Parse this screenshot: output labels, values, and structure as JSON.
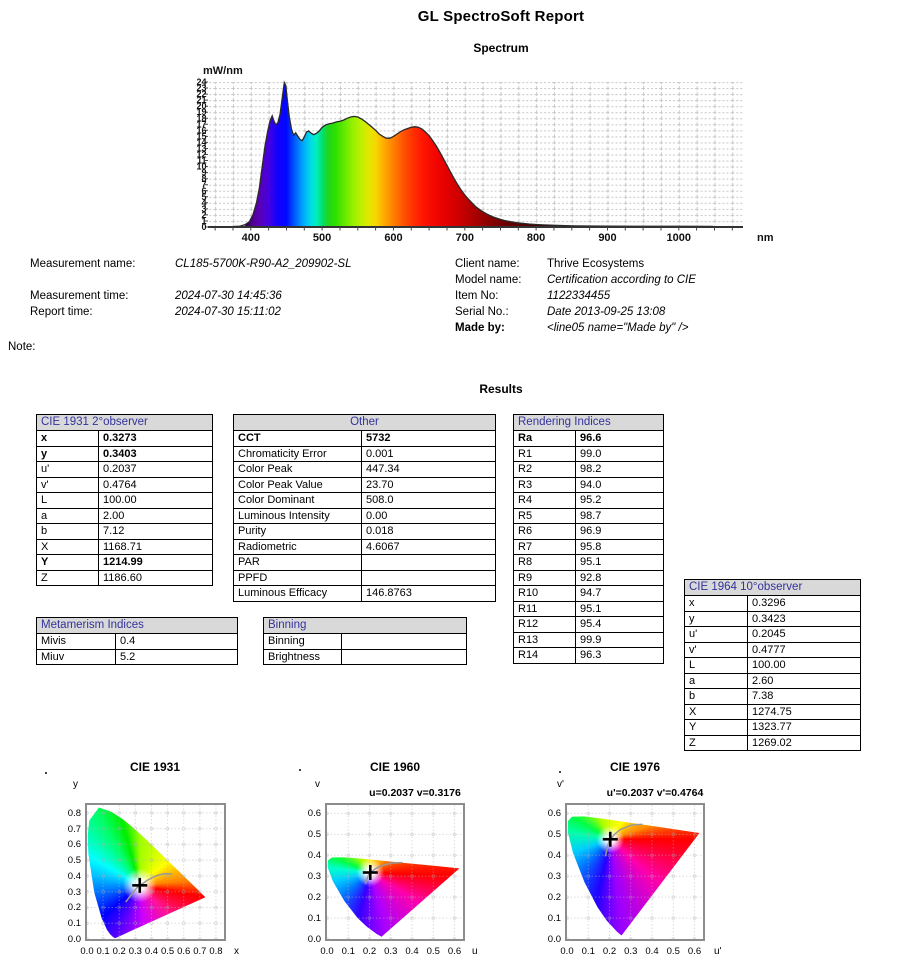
{
  "page": {
    "title": "GL SpectroSoft Report",
    "spectrum_heading": "Spectrum",
    "results_heading": "Results",
    "note_label": "Note:"
  },
  "colors": {
    "table_header_text": "#33339C",
    "table_header_bg": "#D9D9D9",
    "grid_line": "#C9C9C9",
    "curve_stroke": "#2A2A2A",
    "frame_border": "#8C8C8C"
  },
  "metadata": {
    "rows": [
      {
        "left_label": "Measurement name:",
        "left_value": "CL185-5700K-R90-A2_209902-SL",
        "right_label": "Client name:",
        "right_value": "Thrive Ecosystems"
      },
      {
        "left_label": "",
        "left_value": "",
        "right_label": "Model name:",
        "right_value": "Certification according to CIE"
      },
      {
        "left_label": "Measurement time:",
        "left_value": "2024-07-30 14:45:36",
        "right_label": "Item No:",
        "right_value": "1122334455"
      },
      {
        "left_label": "Report time:",
        "left_value": "2024-07-30 15:11:02",
        "right_label": "Serial No.:",
        "right_value": "Date 2013-09-25 13:08"
      },
      {
        "left_label": "",
        "left_value": "",
        "right_label": "Made by:",
        "right_value": "<line05 name=\"Made by\" />"
      }
    ]
  },
  "tables": {
    "cie1931": {
      "title": "CIE 1931 2°observer",
      "center": false,
      "rows": [
        [
          "x",
          "0.3273",
          1
        ],
        [
          "y",
          "0.3403",
          1
        ],
        [
          "u'",
          "0.2037",
          0
        ],
        [
          "v'",
          "0.4764",
          0
        ],
        [
          "L",
          "100.00",
          0
        ],
        [
          "a",
          "2.00",
          0
        ],
        [
          "b",
          "7.12",
          0
        ],
        [
          "X",
          "1168.71",
          0
        ],
        [
          "Y",
          "1214.99",
          1
        ],
        [
          "Z",
          "1186.60",
          0
        ]
      ]
    },
    "other": {
      "title": "Other",
      "center": true,
      "rows": [
        [
          "CCT",
          "5732",
          1
        ],
        [
          "Chromaticity Error",
          "0.001",
          0
        ],
        [
          "Color Peak",
          "447.34",
          0
        ],
        [
          "Color Peak Value",
          "23.70",
          0
        ],
        [
          "Color Dominant",
          "508.0",
          0
        ],
        [
          "Luminous Intensity",
          "0.00",
          0
        ],
        [
          "Purity",
          "0.018",
          0
        ],
        [
          "Radiometric",
          "4.6067",
          0
        ],
        [
          "PAR",
          "",
          0
        ],
        [
          "PPFD",
          "",
          0
        ],
        [
          "Luminous Efficacy",
          "146.8763",
          0
        ]
      ]
    },
    "rendering": {
      "title": "Rendering Indices",
      "center": false,
      "rows": [
        [
          "Ra",
          "96.6",
          1
        ],
        [
          "R1",
          "99.0",
          0
        ],
        [
          "R2",
          "98.2",
          0
        ],
        [
          "R3",
          "94.0",
          0
        ],
        [
          "R4",
          "95.2",
          0
        ],
        [
          "R5",
          "98.7",
          0
        ],
        [
          "R6",
          "96.9",
          0
        ],
        [
          "R7",
          "95.8",
          0
        ],
        [
          "R8",
          "95.1",
          0
        ],
        [
          "R9",
          "92.8",
          0
        ],
        [
          "R10",
          "94.7",
          0
        ],
        [
          "R11",
          "95.1",
          0
        ],
        [
          "R12",
          "95.4",
          0
        ],
        [
          "R13",
          "99.9",
          0
        ],
        [
          "R14",
          "96.3",
          0
        ]
      ]
    },
    "cie1964": {
      "title": "CIE 1964 10°observer",
      "center": false,
      "rows": [
        [
          "x",
          "0.3296",
          0
        ],
        [
          "y",
          "0.3423",
          0
        ],
        [
          "u'",
          "0.2045",
          0
        ],
        [
          "v'",
          "0.4777",
          0
        ],
        [
          "L",
          "100.00",
          0
        ],
        [
          "a",
          "2.60",
          0
        ],
        [
          "b",
          "7.38",
          0
        ],
        [
          "X",
          "1274.75",
          0
        ],
        [
          "Y",
          "1323.77",
          0
        ],
        [
          "Z",
          "1269.02",
          0
        ]
      ]
    },
    "metamerism": {
      "title": "Metamerism Indices",
      "center": false,
      "rows": [
        [
          "Mivis",
          "0.4",
          0
        ],
        [
          "Miuv",
          "5.2",
          0
        ]
      ]
    },
    "binning": {
      "title": "Binning",
      "center": false,
      "rows": [
        [
          "Binning",
          "",
          0
        ],
        [
          "Brightness",
          "",
          0
        ]
      ]
    }
  },
  "chart_data": [
    {
      "type": "area",
      "title": "Spectrum",
      "xlabel": "nm",
      "ylabel": "mW/nm",
      "xlim": [
        340,
        1090
      ],
      "ylim": [
        0,
        24
      ],
      "ytick_step": 1,
      "xticks": [
        400,
        500,
        600,
        700,
        800,
        900,
        1000
      ],
      "grid": true,
      "fill_range": [
        390,
        845
      ],
      "points": [
        [
          350,
          0
        ],
        [
          360,
          0.05
        ],
        [
          375,
          0.08
        ],
        [
          385,
          0.15
        ],
        [
          392,
          0.4
        ],
        [
          398,
          0.9
        ],
        [
          403,
          2
        ],
        [
          408,
          4
        ],
        [
          412,
          6.5
        ],
        [
          416,
          10
        ],
        [
          420,
          13.5
        ],
        [
          424,
          16
        ],
        [
          427,
          17.6
        ],
        [
          430,
          18.4
        ],
        [
          432,
          17.7
        ],
        [
          435,
          16.9
        ],
        [
          438,
          17.3
        ],
        [
          441,
          18.6
        ],
        [
          444,
          21.3
        ],
        [
          447,
          23.9
        ],
        [
          449,
          23.4
        ],
        [
          451,
          21.2
        ],
        [
          454,
          18.2
        ],
        [
          457,
          16.2
        ],
        [
          460,
          15.2
        ],
        [
          463,
          15.6
        ],
        [
          466,
          15.0
        ],
        [
          469,
          14.5
        ],
        [
          472,
          14.3
        ],
        [
          475,
          14.9
        ],
        [
          478,
          15.7
        ],
        [
          481,
          15.9
        ],
        [
          484,
          15.6
        ],
        [
          488,
          15.3
        ],
        [
          492,
          15.5
        ],
        [
          496,
          15.9
        ],
        [
          500,
          16.5
        ],
        [
          505,
          16.9
        ],
        [
          510,
          17.1
        ],
        [
          515,
          17.2
        ],
        [
          520,
          17.4
        ],
        [
          525,
          17.5
        ],
        [
          530,
          17.7
        ],
        [
          535,
          18.0
        ],
        [
          540,
          18.2
        ],
        [
          545,
          18.3
        ],
        [
          550,
          18.2
        ],
        [
          555,
          17.9
        ],
        [
          560,
          17.5
        ],
        [
          565,
          17.0
        ],
        [
          570,
          16.5
        ],
        [
          575,
          16.0
        ],
        [
          580,
          15.4
        ],
        [
          585,
          15.0
        ],
        [
          590,
          14.7
        ],
        [
          595,
          14.7
        ],
        [
          600,
          15.0
        ],
        [
          605,
          15.4
        ],
        [
          610,
          15.8
        ],
        [
          615,
          16.1
        ],
        [
          620,
          16.3
        ],
        [
          625,
          16.5
        ],
        [
          630,
          16.6
        ],
        [
          635,
          16.5
        ],
        [
          640,
          16.2
        ],
        [
          645,
          15.7
        ],
        [
          650,
          15.1
        ],
        [
          655,
          14.3
        ],
        [
          660,
          13.4
        ],
        [
          665,
          12.4
        ],
        [
          670,
          11.3
        ],
        [
          675,
          10.2
        ],
        [
          680,
          9.1
        ],
        [
          685,
          8.0
        ],
        [
          690,
          7.0
        ],
        [
          695,
          6.1
        ],
        [
          700,
          5.3
        ],
        [
          705,
          4.6
        ],
        [
          710,
          4.0
        ],
        [
          715,
          3.4
        ],
        [
          720,
          2.95
        ],
        [
          725,
          2.55
        ],
        [
          730,
          2.2
        ],
        [
          735,
          1.9
        ],
        [
          740,
          1.65
        ],
        [
          745,
          1.45
        ],
        [
          750,
          1.25
        ],
        [
          755,
          1.1
        ],
        [
          760,
          0.97
        ],
        [
          765,
          0.86
        ],
        [
          770,
          0.76
        ],
        [
          775,
          0.68
        ],
        [
          780,
          0.61
        ],
        [
          790,
          0.5
        ],
        [
          800,
          0.42
        ],
        [
          810,
          0.35
        ],
        [
          820,
          0.3
        ],
        [
          830,
          0.26
        ],
        [
          840,
          0.23
        ],
        [
          855,
          0.19
        ],
        [
          875,
          0.16
        ],
        [
          900,
          0.14
        ],
        [
          940,
          0.12
        ],
        [
          1000,
          0.11
        ],
        [
          1048,
          0.1
        ]
      ],
      "gradient": [
        [
          388,
          "#140022"
        ],
        [
          400,
          "#4b0082"
        ],
        [
          412,
          "#5a00b5"
        ],
        [
          425,
          "#4400e0"
        ],
        [
          437,
          "#1500ff"
        ],
        [
          450,
          "#0008ff"
        ],
        [
          460,
          "#0050ff"
        ],
        [
          472,
          "#00a0ff"
        ],
        [
          483,
          "#00d8e8"
        ],
        [
          492,
          "#00efc0"
        ],
        [
          500,
          "#00e070"
        ],
        [
          508,
          "#1fd51f"
        ],
        [
          518,
          "#2ce000"
        ],
        [
          530,
          "#5fe800"
        ],
        [
          542,
          "#90f000"
        ],
        [
          555,
          "#c0f000"
        ],
        [
          565,
          "#e0e800"
        ],
        [
          575,
          "#f6d800"
        ],
        [
          585,
          "#ffb000"
        ],
        [
          595,
          "#ff9000"
        ],
        [
          605,
          "#ff7000"
        ],
        [
          615,
          "#ff5000"
        ],
        [
          628,
          "#ff3000"
        ],
        [
          640,
          "#ff1800"
        ],
        [
          655,
          "#f50800"
        ],
        [
          670,
          "#e80000"
        ],
        [
          690,
          "#d00000"
        ],
        [
          710,
          "#b00000"
        ],
        [
          730,
          "#900000"
        ],
        [
          755,
          "#700000"
        ],
        [
          785,
          "#500000"
        ],
        [
          815,
          "#380000"
        ],
        [
          845,
          "#280000"
        ]
      ]
    },
    {
      "type": "scatter",
      "title": "CIE 1931",
      "subtitle": "",
      "xlabel": "x",
      "ylabel": "y",
      "xlim": [
        0,
        0.85
      ],
      "ylim": [
        0,
        0.85
      ],
      "ticks": [
        "0.0",
        "0.1",
        "0.2",
        "0.3",
        "0.4",
        "0.5",
        "0.6",
        "0.7",
        "0.8"
      ],
      "point": [
        0.3273,
        0.3403
      ]
    },
    {
      "type": "scatter",
      "title": "CIE 1960",
      "subtitle": "u=0.2037 v=0.3176",
      "xlabel": "u",
      "ylabel": "v",
      "xlim": [
        0,
        0.64
      ],
      "ylim": [
        0,
        0.64
      ],
      "ticks": [
        "0.0",
        "0.1",
        "0.2",
        "0.3",
        "0.4",
        "0.5",
        "0.6"
      ],
      "point": [
        0.2037,
        0.3176
      ]
    },
    {
      "type": "scatter",
      "title": "CIE 1976",
      "subtitle": "u'=0.2037 v'=0.4764",
      "xlabel": "u'",
      "ylabel": "v'",
      "xlim": [
        0,
        0.64
      ],
      "ylim": [
        0,
        0.64
      ],
      "ticks": [
        "0.0",
        "0.1",
        "0.2",
        "0.3",
        "0.4",
        "0.5",
        "0.6"
      ],
      "point": [
        0.2037,
        0.4764
      ]
    }
  ]
}
